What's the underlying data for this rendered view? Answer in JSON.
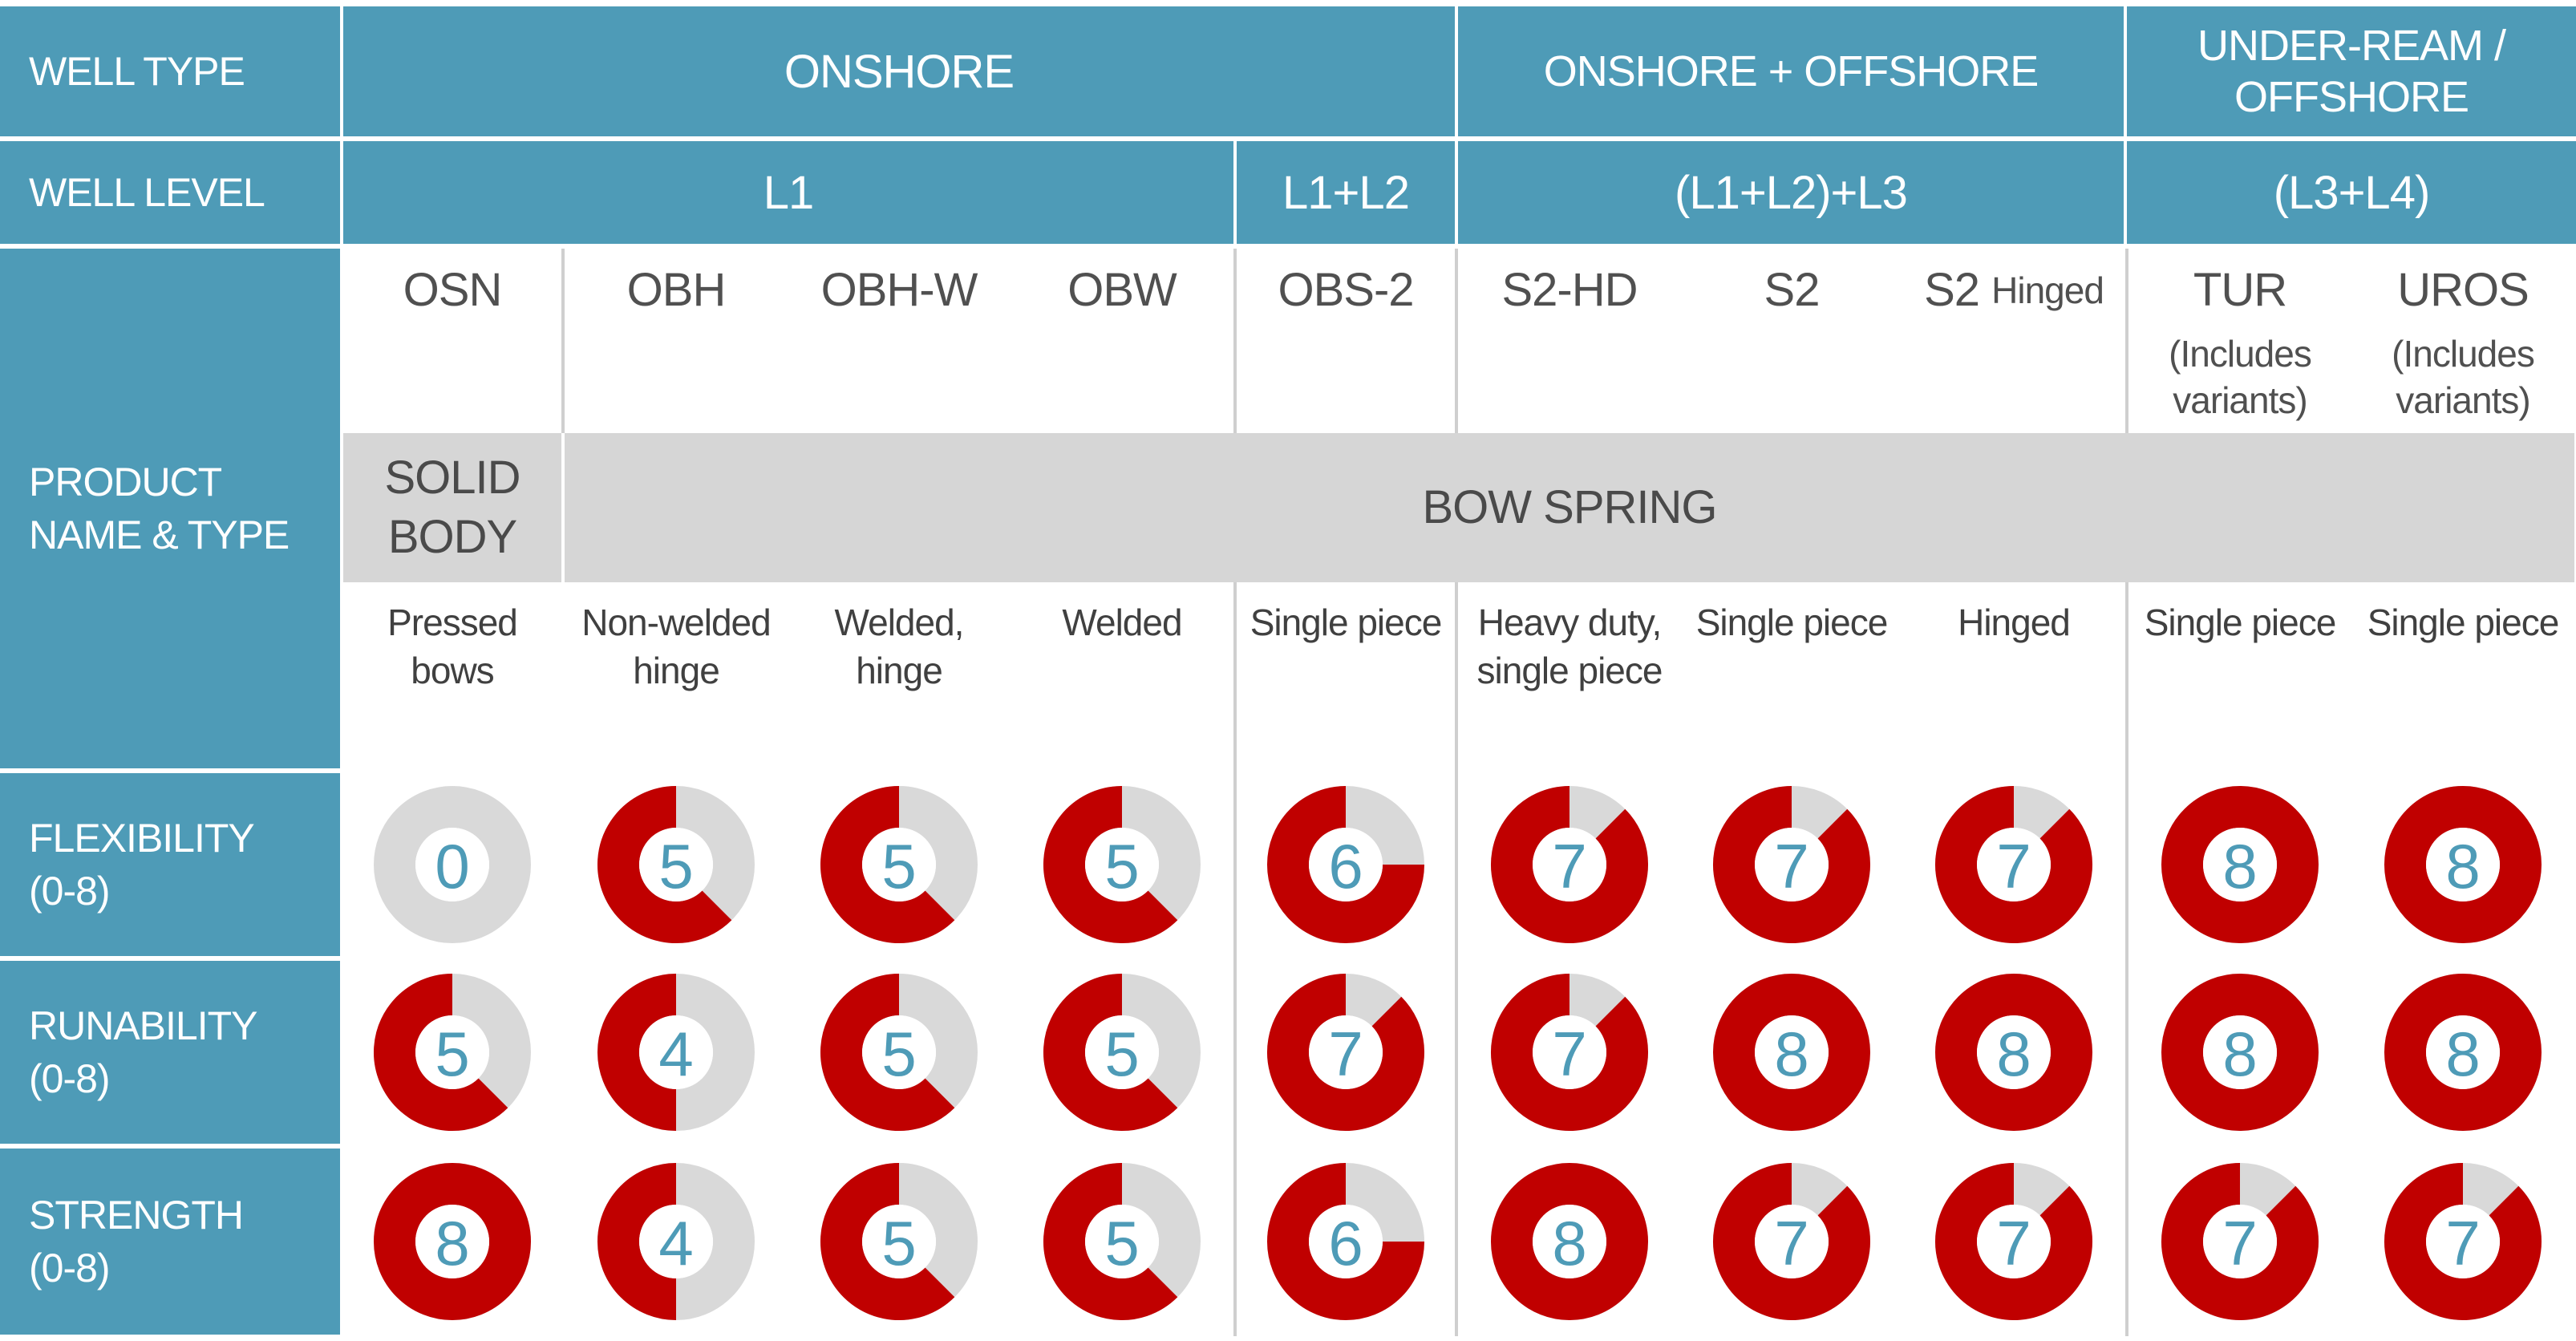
{
  "row_labels": {
    "well_type": "WELL TYPE",
    "well_level": "WELL LEVEL",
    "product_line1": "PRODUCT",
    "product_line2": "NAME & TYPE",
    "flexibility_line1": "FLEXIBILITY",
    "flexibility_line2": "(0-8)",
    "runability_line1": "RUNABILITY",
    "runability_line2": "(0-8)",
    "strength_line1": "STRENGTH",
    "strength_line2": "(0-8)"
  },
  "well_types": {
    "onshore": "ONSHORE",
    "onshore_offshore": "ONSHORE + OFFSHORE",
    "underream_line1": "UNDER-REAM /",
    "underream_line2": "OFFSHORE"
  },
  "well_levels": {
    "l1": "L1",
    "l1_l2": "L1+L2",
    "l1_l2_l3": "(L1+L2)+L3",
    "l3_l4": "(L3+L4)"
  },
  "products": [
    {
      "name": "OSN",
      "desc_line1": "Pressed",
      "desc_line2": "bows",
      "flexibility": 0,
      "runability": 5,
      "strength": 8
    },
    {
      "name": "OBH",
      "desc_line1": "Non-welded",
      "desc_line2": "hinge",
      "flexibility": 5,
      "runability": 4,
      "strength": 4
    },
    {
      "name": "OBH-W",
      "desc_line1": "Welded,",
      "desc_line2": "hinge",
      "flexibility": 5,
      "runability": 5,
      "strength": 5
    },
    {
      "name": "OBW",
      "desc_line1": "Welded",
      "desc_line2": "",
      "flexibility": 5,
      "runability": 5,
      "strength": 5
    },
    {
      "name": "OBS-2",
      "desc_line1": "Single piece",
      "desc_line2": "",
      "flexibility": 6,
      "runability": 7,
      "strength": 6
    },
    {
      "name": "S2-HD",
      "desc_line1": "Heavy duty,",
      "desc_line2": "single piece",
      "flexibility": 7,
      "runability": 7,
      "strength": 8
    },
    {
      "name": "S2",
      "desc_line1": "Single piece",
      "desc_line2": "",
      "flexibility": 7,
      "runability": 8,
      "strength": 7
    },
    {
      "name": "S2",
      "name_suffix": "Hinged",
      "desc_line1": "Hinged",
      "desc_line2": "",
      "flexibility": 7,
      "runability": 8,
      "strength": 7
    },
    {
      "name": "TUR",
      "variants_line1": "(Includes",
      "variants_line2": "variants)",
      "desc_line1": "Single piece",
      "desc_line2": "",
      "flexibility": 8,
      "runability": 8,
      "strength": 7
    },
    {
      "name": "UROS",
      "variants_line1": "(Includes",
      "variants_line2": "variants)",
      "desc_line1": "Single piece",
      "desc_line2": "",
      "flexibility": 8,
      "runability": 8,
      "strength": 7
    }
  ],
  "types": {
    "solid_line1": "SOLID",
    "solid_line2": "BODY",
    "bow_spring": "BOW SPRING"
  },
  "rating_max": 8,
  "colors": {
    "header_blue": "#4e9bb7",
    "rating_red": "#c00000",
    "rating_track": "#d9d9d9",
    "band_gray": "#d6d6d6"
  }
}
